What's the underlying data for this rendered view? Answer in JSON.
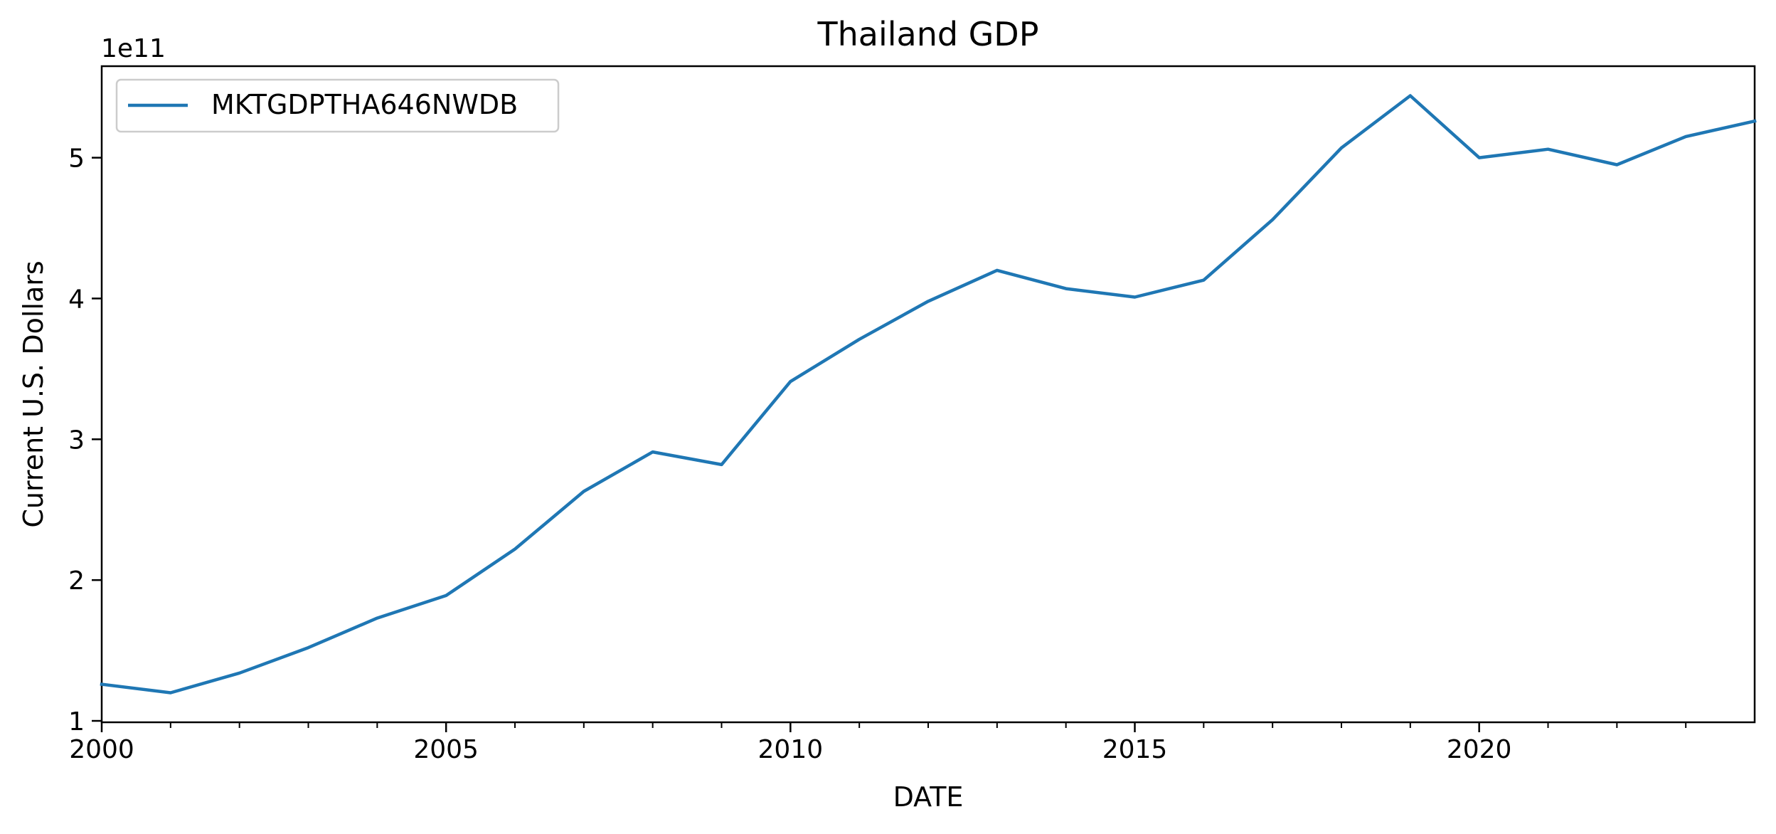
{
  "chart_data": {
    "type": "line",
    "title": "Thailand GDP",
    "xlabel": "DATE",
    "ylabel": "Current U.S. Dollars",
    "y_offset_label": "1e11",
    "xlim": [
      2000,
      2024
    ],
    "ylim": [
      0.99,
      5.65
    ],
    "x_ticks": [
      2000,
      2005,
      2010,
      2015,
      2020
    ],
    "x_tick_labels": [
      "2000",
      "2005",
      "2010",
      "2015",
      "2020"
    ],
    "x_minor_ticks": [
      2001,
      2002,
      2003,
      2004,
      2006,
      2007,
      2008,
      2009,
      2011,
      2012,
      2013,
      2014,
      2016,
      2017,
      2018,
      2019,
      2021,
      2022,
      2023
    ],
    "y_ticks": [
      1,
      2,
      3,
      4,
      5
    ],
    "y_tick_labels": [
      "1",
      "2",
      "3",
      "4",
      "5"
    ],
    "grid": false,
    "legend": {
      "placement": "upper-left"
    },
    "series": [
      {
        "name": "MKTGDPTHA646NWDB",
        "color": "#1f77b4",
        "x": [
          2000,
          2001,
          2002,
          2003,
          2004,
          2005,
          2006,
          2007,
          2008,
          2009,
          2010,
          2011,
          2012,
          2013,
          2014,
          2015,
          2016,
          2017,
          2018,
          2019,
          2020,
          2021,
          2022,
          2023,
          2024
        ],
        "values": [
          1.26,
          1.2,
          1.34,
          1.52,
          1.73,
          1.89,
          2.22,
          2.63,
          2.91,
          2.82,
          3.41,
          3.71,
          3.98,
          4.2,
          4.07,
          4.01,
          4.13,
          4.56,
          5.07,
          5.44,
          5.0,
          5.06,
          4.95,
          5.15,
          5.26
        ]
      }
    ]
  }
}
